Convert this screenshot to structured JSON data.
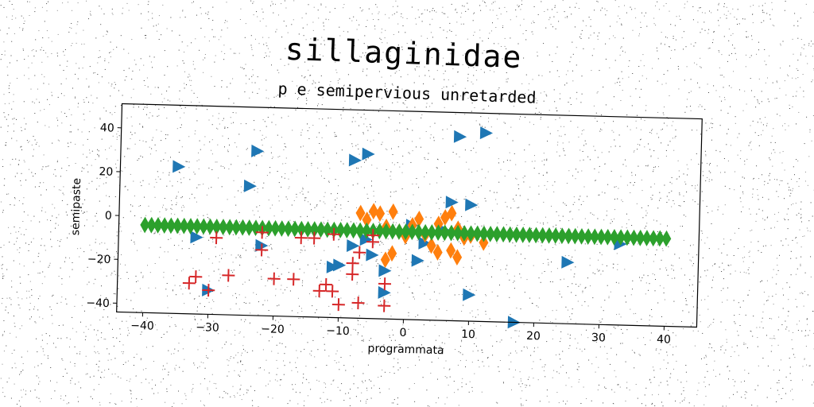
{
  "chart_data": {
    "type": "scatter",
    "title": "sillaginidae",
    "subtitle": "p e semipervious unretarded",
    "xlabel": "programmata",
    "ylabel": "semipaste",
    "xlim": [
      -44,
      45
    ],
    "ylim": [
      -44,
      51
    ],
    "xticks": [
      -40,
      -30,
      -20,
      -10,
      0,
      10,
      20,
      30,
      40
    ],
    "yticks": [
      -40,
      -20,
      0,
      20,
      40
    ],
    "grid": false,
    "colors": {
      "blue": "#1f77b4",
      "orange": "#ff7f0e",
      "green": "#2ca02c",
      "red": "#d62728"
    },
    "series": [
      {
        "marker": "triangle-right",
        "color": "#1f77b4",
        "points": [
          [
            -35,
            23
          ],
          [
            -23,
            31
          ],
          [
            -24,
            15
          ],
          [
            -32,
            -9
          ],
          [
            -22,
            -12
          ],
          [
            -30,
            -33
          ],
          [
            -8,
            28
          ],
          [
            -6,
            31
          ],
          [
            8,
            40
          ],
          [
            12,
            42
          ],
          [
            7,
            10
          ],
          [
            10,
            9
          ],
          [
            -8,
            -11
          ],
          [
            -10,
            -20
          ],
          [
            -11,
            -21
          ],
          [
            -5,
            -15
          ],
          [
            -3,
            -22
          ],
          [
            -3,
            -32
          ],
          [
            1,
            -1
          ],
          [
            2,
            -17
          ],
          [
            3,
            -9
          ],
          [
            6,
            -3
          ],
          [
            10,
            -32
          ],
          [
            17,
            -44
          ],
          [
            25,
            -16
          ],
          [
            33,
            -7
          ],
          [
            -6,
            -8
          ]
        ]
      },
      {
        "marker": "diamond",
        "color": "#ff7f0e",
        "points": [
          [
            -7,
            4
          ],
          [
            -6,
            1
          ],
          [
            -5,
            5
          ],
          [
            -4,
            4
          ],
          [
            -3,
            -2
          ],
          [
            -2,
            5
          ],
          [
            -1,
            -4
          ],
          [
            1,
            -1
          ],
          [
            2,
            2
          ],
          [
            3,
            -5
          ],
          [
            5,
            0
          ],
          [
            6,
            3
          ],
          [
            7,
            5
          ],
          [
            8,
            -2
          ],
          [
            9,
            -6
          ],
          [
            4,
            -10
          ],
          [
            5,
            -13
          ],
          [
            7,
            -12
          ],
          [
            8,
            -15
          ],
          [
            10,
            -5
          ],
          [
            -2,
            -14
          ],
          [
            0,
            -6
          ],
          [
            12,
            -8
          ],
          [
            -3,
            -17
          ]
        ]
      },
      {
        "marker": "diamond",
        "color": "#2ca02c",
        "points": [
          [
            -40,
            -4
          ],
          [
            -39,
            -4
          ],
          [
            -38,
            -4
          ],
          [
            -37,
            -4
          ],
          [
            -36,
            -4
          ],
          [
            -35,
            -4
          ],
          [
            -34,
            -4
          ],
          [
            -33,
            -4
          ],
          [
            -32,
            -4
          ],
          [
            -31,
            -4
          ],
          [
            -30,
            -4
          ],
          [
            -29,
            -4
          ],
          [
            -28,
            -4
          ],
          [
            -27,
            -4
          ],
          [
            -26,
            -4
          ],
          [
            -25,
            -4
          ],
          [
            -24,
            -4
          ],
          [
            -23,
            -4
          ],
          [
            -22,
            -4
          ],
          [
            -21,
            -4
          ],
          [
            -20,
            -4
          ],
          [
            -19,
            -4
          ],
          [
            -18,
            -4
          ],
          [
            -17,
            -4
          ],
          [
            -16,
            -4
          ],
          [
            -15,
            -4
          ],
          [
            -14,
            -4
          ],
          [
            -13,
            -4
          ],
          [
            -12,
            -4
          ],
          [
            -11,
            -4
          ],
          [
            -10,
            -4
          ],
          [
            -9,
            -4
          ],
          [
            -8,
            -4
          ],
          [
            -7,
            -4
          ],
          [
            -6,
            -4
          ],
          [
            -5,
            -4
          ],
          [
            -4,
            -4
          ],
          [
            -3,
            -4
          ],
          [
            -2,
            -4
          ],
          [
            -1,
            -4
          ],
          [
            0,
            -4
          ],
          [
            1,
            -4
          ],
          [
            2,
            -4
          ],
          [
            3,
            -4
          ],
          [
            4,
            -4
          ],
          [
            5,
            -4
          ],
          [
            6,
            -4
          ],
          [
            7,
            -4
          ],
          [
            8,
            -4
          ],
          [
            9,
            -4
          ],
          [
            10,
            -4
          ],
          [
            11,
            -4
          ],
          [
            12,
            -4
          ],
          [
            13,
            -4
          ],
          [
            14,
            -4
          ],
          [
            15,
            -4
          ],
          [
            16,
            -4
          ],
          [
            17,
            -4
          ],
          [
            18,
            -4
          ],
          [
            19,
            -4
          ],
          [
            20,
            -4
          ],
          [
            21,
            -4
          ],
          [
            22,
            -4
          ],
          [
            23,
            -4
          ],
          [
            24,
            -4
          ],
          [
            25,
            -4
          ],
          [
            26,
            -4
          ],
          [
            27,
            -4
          ],
          [
            28,
            -4
          ],
          [
            29,
            -4
          ],
          [
            30,
            -4
          ],
          [
            31,
            -4
          ],
          [
            32,
            -4
          ],
          [
            33,
            -4
          ],
          [
            34,
            -4
          ],
          [
            35,
            -4
          ],
          [
            36,
            -4
          ],
          [
            37,
            -4
          ],
          [
            38,
            -4
          ],
          [
            39,
            -4
          ],
          [
            40,
            -4
          ]
        ]
      },
      {
        "marker": "plus",
        "color": "#d62728",
        "points": [
          [
            -32,
            -27
          ],
          [
            -33,
            -30
          ],
          [
            -30,
            -33
          ],
          [
            -29,
            -9
          ],
          [
            -27,
            -26
          ],
          [
            -22,
            -14
          ],
          [
            -22,
            -6
          ],
          [
            -20,
            -27
          ],
          [
            -17,
            -27
          ],
          [
            -16,
            -8
          ],
          [
            -14,
            -8
          ],
          [
            -13,
            -32
          ],
          [
            -12,
            -29
          ],
          [
            -11,
            -32
          ],
          [
            -10,
            -38
          ],
          [
            -8,
            -24
          ],
          [
            -7,
            -37
          ],
          [
            -7,
            -14
          ],
          [
            -5,
            -9
          ],
          [
            -5,
            -6
          ],
          [
            -3,
            -28
          ],
          [
            -3,
            -38
          ],
          [
            -11,
            -6
          ],
          [
            -8,
            -19
          ]
        ]
      }
    ]
  }
}
